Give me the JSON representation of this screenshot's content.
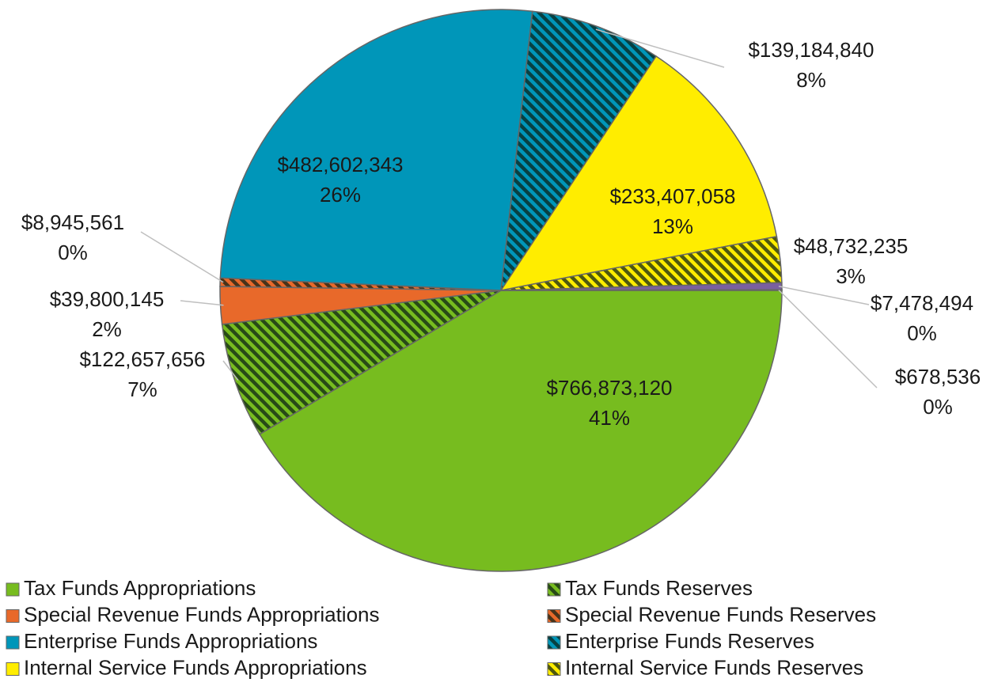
{
  "chart_data": {
    "type": "pie",
    "categories": [
      "Tax Funds Appropriations",
      "Tax Funds Reserves",
      "Special Revenue Funds Appropriations",
      "Special Revenue Funds Reserves",
      "Enterprise Funds Appropriations",
      "Enterprise Funds Reserves",
      "Internal Service Funds  Appropriations",
      "Internal Service Funds Reserves",
      null,
      null
    ],
    "values": [
      766873120,
      122657656,
      39800145,
      8945561,
      482602343,
      139184840,
      233407058,
      48732235,
      7478494,
      678536
    ],
    "value_labels": [
      "$766,873,120",
      "$122,657,656",
      "$39,800,145",
      "$8,945,561",
      "$482,602,343",
      "$139,184,840",
      "$233,407,058",
      "$48,732,235",
      "$7,478,494",
      "$678,536"
    ],
    "percent_labels": [
      "41%",
      "7%",
      "2%",
      "0%",
      "26%",
      "8%",
      "13%",
      "3%",
      "0%",
      "0%"
    ],
    "colors": [
      "#77bc1f",
      "#77bc1f",
      "#e8692a",
      "#e8692a",
      "#0096b9",
      "#0096b9",
      "#ffed00",
      "#ffed00",
      "#7a5fa0",
      "#9a9a9a"
    ],
    "hatched": [
      false,
      true,
      false,
      true,
      false,
      true,
      false,
      true,
      false,
      false
    ]
  }
}
